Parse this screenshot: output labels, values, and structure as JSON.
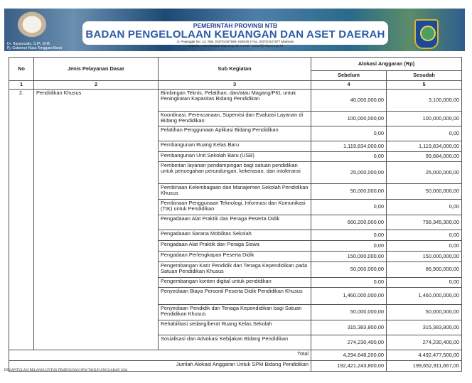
{
  "header": {
    "org_line1": "PEMERINTAH PROVINSI NTB",
    "org_line2": "BADAN PENGELOLAAN KEUANGAN DAN ASET DAERAH",
    "address": "Jl. Pejanggik No. 14, Telp. (0370) 627689, 625345 | Fax. (0370) 627677 Mataram",
    "website": "Website : www.bpkad.ntbprov.go.id, e-mail : bpkad@ntbprov.go.id",
    "official_name": "Dr. Hassanudin, S.IP., M.M.",
    "official_title": "Pj. Gubernur Nusa Tenggara Barat"
  },
  "table": {
    "headers": {
      "no": "No",
      "jenis": "Jenis Pelayanan Dasar",
      "sub": "Sub Kegiatan",
      "alokasi": "Alokasi Anggaran (Rp)",
      "sebelum": "Sebelum",
      "sesudah": "Sesudah"
    },
    "col_numbers": [
      "1",
      "2",
      "3",
      "4",
      "5"
    ],
    "group_no": "2.",
    "group_name": "Pendidikan Khusus",
    "rows": [
      {
        "sub": "Bimbingan Teknis, Pelatihan, dan/atau Magang/PKL untuk Peningkatan Kapasitas Bidang Pendidikan",
        "sebelum": "40,000,000,00",
        "sesudah": "3,100,000,00"
      },
      {
        "sub": "Koordinasi, Perencanaan, Supervisi dan Evaluasi Layanan di Bidang Pendidikan",
        "sebelum": "100,000,000,00",
        "sesudah": "100,000,000,00"
      },
      {
        "sub": "Pelatihan Penggunaan Aplikasi Bidang Pendidikan",
        "sebelum": "0,00",
        "sesudah": "0,00"
      },
      {
        "sub": "Pembangunan Ruang Kelas Baru",
        "sebelum": "1,119,834,000,00",
        "sesudah": "1,119,834,000,00"
      },
      {
        "sub": "Pembangunan Unit Sekolah Baru (USB)",
        "sebelum": "0,00",
        "sesudah": "99,684,000,00"
      },
      {
        "sub": "Pemberian layanan pendampingan bagi satuan pendidikan untuk pencegahan perundungan, kekerasan, dan intoleransi",
        "sebelum": "25,000,000,00",
        "sesudah": "25,000,000,00"
      },
      {
        "sub": "Pembinaan Kelembagaan dan Manajemen Sekolah Pendidikan Khusus",
        "sebelum": "50,000,000,00",
        "sesudah": "50,000,000,00"
      },
      {
        "sub": "Pembinaan Penggunaan Teknologi, Informasi dan Komunikasi (TIK) untuk Pendidikan",
        "sebelum": "0,00",
        "sesudah": "0,00"
      },
      {
        "sub": "Pengadaaan Alat Praktik dan Peraga Peserta Didik",
        "sebelum": "660,200,000,00",
        "sesudah": "758,345,300,00"
      },
      {
        "sub": "Pengadaaan Sarana Mobilitas Sekolah",
        "sebelum": "0,00",
        "sesudah": "0,00"
      },
      {
        "sub": "Pengadaan Alat Praktik dan Peraga Siswa",
        "sebelum": "0,00",
        "sesudah": "0,00"
      },
      {
        "sub": "Pengadaan Perlengkapan Peserta Didik",
        "sebelum": "150,000,000,00",
        "sesudah": "150,000,000,00"
      },
      {
        "sub": "Pengembangan Karir Pendidik dan Tenaga Kependidikan pada Satuan Pendidikan Khusus",
        "sebelum": "50,000,000,00",
        "sesudah": "86,900,000,00"
      },
      {
        "sub": "Pengembangan konten digital untuk pendidikan",
        "sebelum": "0,00",
        "sesudah": "0,00"
      },
      {
        "sub": "Penyediaan Biaya Personil Peserta Didik Pendidikan Khusus",
        "sebelum": "1,460,000,000,00",
        "sesudah": "1,460,000,000,00"
      },
      {
        "sub": "Penyediaan Pendidik dan Tenaga Kependidikan bagi Satuan Pendidikan Khusus",
        "sebelum": "50,000,000,00",
        "sesudah": "50,000,000,00"
      },
      {
        "sub": "Rehabilitasi sedang/berat Ruang Kelas Sekolah",
        "sebelum": "315,383,800,00",
        "sesudah": "315,383,800,00"
      },
      {
        "sub": "Sosialisasi dan Advokasi Kebijakan Bidang Pendidikan",
        "sebelum": "274,230,400,00",
        "sesudah": "274,230,400,00"
      }
    ],
    "total": {
      "label": "Total",
      "sebelum": "4,294,648,200,00",
      "sesudah": "4,492,477,500,00"
    },
    "grand_total": {
      "label": "Jumlah Alokasi Anggaran Untuk SPM Bidang Pendidikan",
      "sebelum": "192,421,243,800,00",
      "sesudah": "199,652,911,667,00"
    }
  },
  "footer": "REKAPITULASI BELANJA UNTUK PEMENUHAN SPM TAHUN ANGGARAN 2024"
}
